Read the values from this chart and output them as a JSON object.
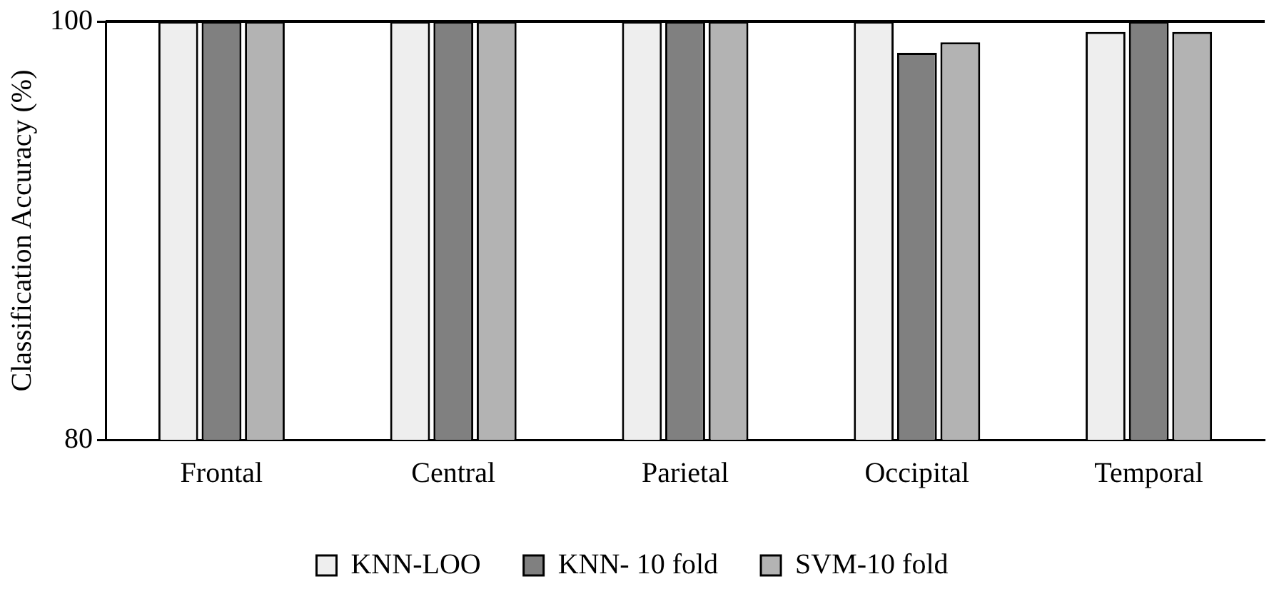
{
  "chart_data": {
    "type": "bar",
    "ylabel": "Classification Accuracy (%)",
    "categories": [
      "Frontal",
      "Central",
      "Parietal",
      "Occipital",
      "Temporal"
    ],
    "series": [
      {
        "name": "KNN-LOO",
        "color": "#eeeeee",
        "values": [
          100,
          100,
          100,
          100,
          99.5
        ]
      },
      {
        "name": "KNN- 10 fold",
        "color": "#808080",
        "values": [
          100,
          100,
          100,
          98.5,
          100
        ]
      },
      {
        "name": "SVM-10 fold",
        "color": "#b3b3b3",
        "values": [
          100,
          100,
          100,
          99,
          99.5
        ]
      }
    ],
    "ylim": [
      80,
      100
    ],
    "yticks": [
      80,
      100
    ],
    "legend": "bottom"
  }
}
